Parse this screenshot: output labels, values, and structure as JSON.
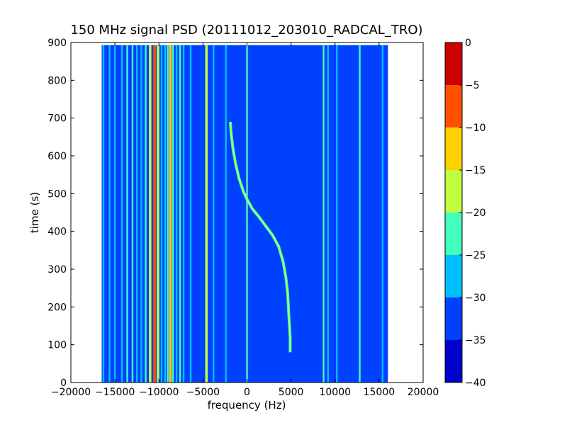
{
  "chart_data": {
    "type": "heatmap",
    "title": "150 MHz signal PSD (20111012_203010_RADCAL_TRO)",
    "xlabel": "frequency (Hz)",
    "ylabel": "time (s)",
    "xlim": [
      -20000,
      20000
    ],
    "ylim": [
      0,
      900
    ],
    "xticks": [
      -20000,
      -15000,
      -10000,
      -5000,
      0,
      5000,
      10000,
      15000,
      20000
    ],
    "yticks": [
      0,
      100,
      200,
      300,
      400,
      500,
      600,
      700,
      800,
      900
    ],
    "data_extent": {
      "x": [
        -16500,
        16000
      ],
      "y": [
        0,
        893
      ]
    },
    "colorbar": {
      "levels": [
        -40,
        -35,
        -30,
        -25,
        -20,
        -15,
        -10,
        -5,
        0
      ],
      "colors": [
        "#0000cd",
        "#0040ff",
        "#00bfff",
        "#40ffbf",
        "#bfff40",
        "#ffd000",
        "#ff5000",
        "#cd0000"
      ]
    },
    "background_level": -32,
    "vertical_lines": [
      {
        "x": -16300,
        "level": -28
      },
      {
        "x": -15600,
        "level": -26
      },
      {
        "x": -15000,
        "level": -28
      },
      {
        "x": -14200,
        "level": -27
      },
      {
        "x": -13600,
        "level": -24
      },
      {
        "x": -13000,
        "level": -22
      },
      {
        "x": -12500,
        "level": -26
      },
      {
        "x": -12000,
        "level": -27
      },
      {
        "x": -11500,
        "level": -23
      },
      {
        "x": -11000,
        "level": -18
      },
      {
        "x": -10500,
        "level": -10
      },
      {
        "x": -10100,
        "level": -20
      },
      {
        "x": -9700,
        "level": -27
      },
      {
        "x": -9300,
        "level": -26
      },
      {
        "x": -9000,
        "level": -22
      },
      {
        "x": -8700,
        "level": -14
      },
      {
        "x": -8400,
        "level": -24
      },
      {
        "x": -8000,
        "level": -27
      },
      {
        "x": -7600,
        "level": -24
      },
      {
        "x": -7200,
        "level": -26
      },
      {
        "x": -6400,
        "level": -27
      },
      {
        "x": -4600,
        "level": -20
      },
      {
        "x": -3800,
        "level": -27
      },
      {
        "x": -2400,
        "level": -26
      },
      {
        "x": 0,
        "level": -24
      },
      {
        "x": 8700,
        "level": -22
      },
      {
        "x": 9200,
        "level": -27
      },
      {
        "x": 10200,
        "level": -27
      },
      {
        "x": 12800,
        "level": -24
      },
      {
        "x": 15400,
        "level": -26
      }
    ],
    "doppler_curve": [
      {
        "f": -1900,
        "t": 690
      },
      {
        "f": -1800,
        "t": 660
      },
      {
        "f": -1600,
        "t": 620
      },
      {
        "f": -1300,
        "t": 580
      },
      {
        "f": -900,
        "t": 540
      },
      {
        "f": -400,
        "t": 505
      },
      {
        "f": 0,
        "t": 485
      },
      {
        "f": 600,
        "t": 460
      },
      {
        "f": 1300,
        "t": 440
      },
      {
        "f": 2100,
        "t": 415
      },
      {
        "f": 2900,
        "t": 390
      },
      {
        "f": 3600,
        "t": 360
      },
      {
        "f": 4100,
        "t": 320
      },
      {
        "f": 4400,
        "t": 280
      },
      {
        "f": 4600,
        "t": 240
      },
      {
        "f": 4700,
        "t": 200
      },
      {
        "f": 4800,
        "t": 160
      },
      {
        "f": 4900,
        "t": 120
      },
      {
        "f": 4900,
        "t": 80
      }
    ],
    "grid": false
  }
}
